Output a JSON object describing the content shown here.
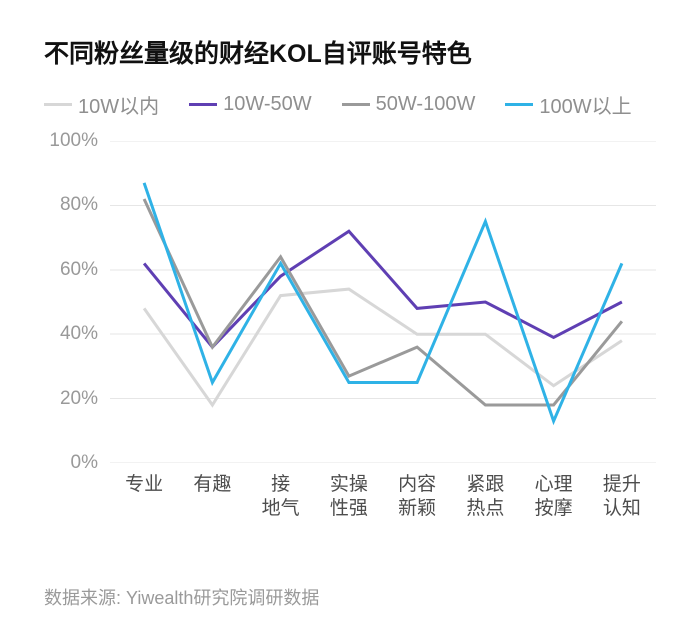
{
  "title": "不同粉丝量级的财经KOL自评账号特色",
  "title_fontsize": 25,
  "title_color": "#111111",
  "background_color": "#ffffff",
  "grid_color": "#e6e6e6",
  "axis_tick_fontsize": 19,
  "axis_tick_color": "#999999",
  "xlabel_fontsize": 19,
  "xlabel_color": "#4d4d4d",
  "legend_fontsize": 20,
  "legend_color": "#8f8f8f",
  "source": "数据来源: Yiwealth研究院调研数据",
  "source_fontsize": 18,
  "source_color": "#9a9a9a",
  "chart": {
    "type": "line",
    "ylim": [
      0,
      100
    ],
    "ytick_step": 20,
    "ytick_format_suffix": "%",
    "categories": [
      "专业",
      "有趣",
      "接\n地气",
      "实操\n性强",
      "内容\n新颖",
      "紧跟\n热点",
      "心理\n按摩",
      "提升\n认知"
    ],
    "line_width": 3,
    "series": [
      {
        "name": "10W以内",
        "color": "#d7d7d7",
        "values": [
          48,
          18,
          52,
          54,
          40,
          40,
          24,
          38
        ]
      },
      {
        "name": "10W-50W",
        "color": "#5f3fb3",
        "values": [
          62,
          36,
          58,
          72,
          48,
          50,
          39,
          50
        ]
      },
      {
        "name": "50W-100W",
        "color": "#9a9a9a",
        "values": [
          82,
          36,
          64,
          27,
          36,
          18,
          18,
          44
        ]
      },
      {
        "name": "100W以上",
        "color": "#2fb2e6",
        "values": [
          87,
          25,
          62,
          25,
          25,
          75,
          13,
          62
        ]
      }
    ]
  }
}
